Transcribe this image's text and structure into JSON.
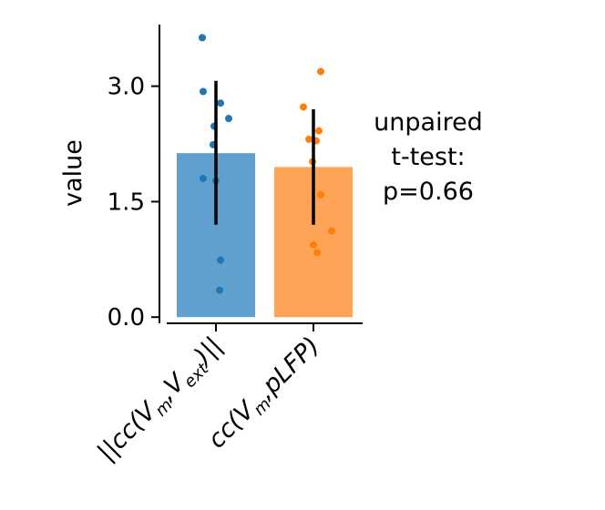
{
  "chart_data": {
    "type": "bar",
    "ylabel": "value",
    "xlabel": "",
    "ylim": [
      -0.08,
      3.8
    ],
    "yticks": [
      0.0,
      1.5,
      3.0
    ],
    "ytick_labels": [
      "0.0",
      "1.5",
      "3.0"
    ],
    "categories": [
      "||cc(V_m,V_ext)||",
      "cc(V_m,pLFP)"
    ],
    "series": [
      {
        "values": [
          2.13,
          1.95
        ],
        "errors": [
          [
            1.2,
            3.07
          ],
          [
            1.2,
            2.7
          ]
        ],
        "colors": [
          "#5fa0ce",
          "#ffa456"
        ],
        "point_colors": [
          "#1f77b4",
          "#ff7f0e"
        ],
        "points": [
          [
            3.63,
            2.93,
            2.78,
            2.58,
            2.48,
            2.24,
            1.8,
            1.77,
            0.74,
            0.35
          ],
          [
            3.19,
            2.73,
            2.42,
            2.31,
            2.29,
            2.02,
            1.59,
            1.12,
            0.94,
            0.84
          ]
        ]
      }
    ],
    "annotation": [
      "unpaired",
      "t-test:",
      "p=0.66"
    ]
  }
}
